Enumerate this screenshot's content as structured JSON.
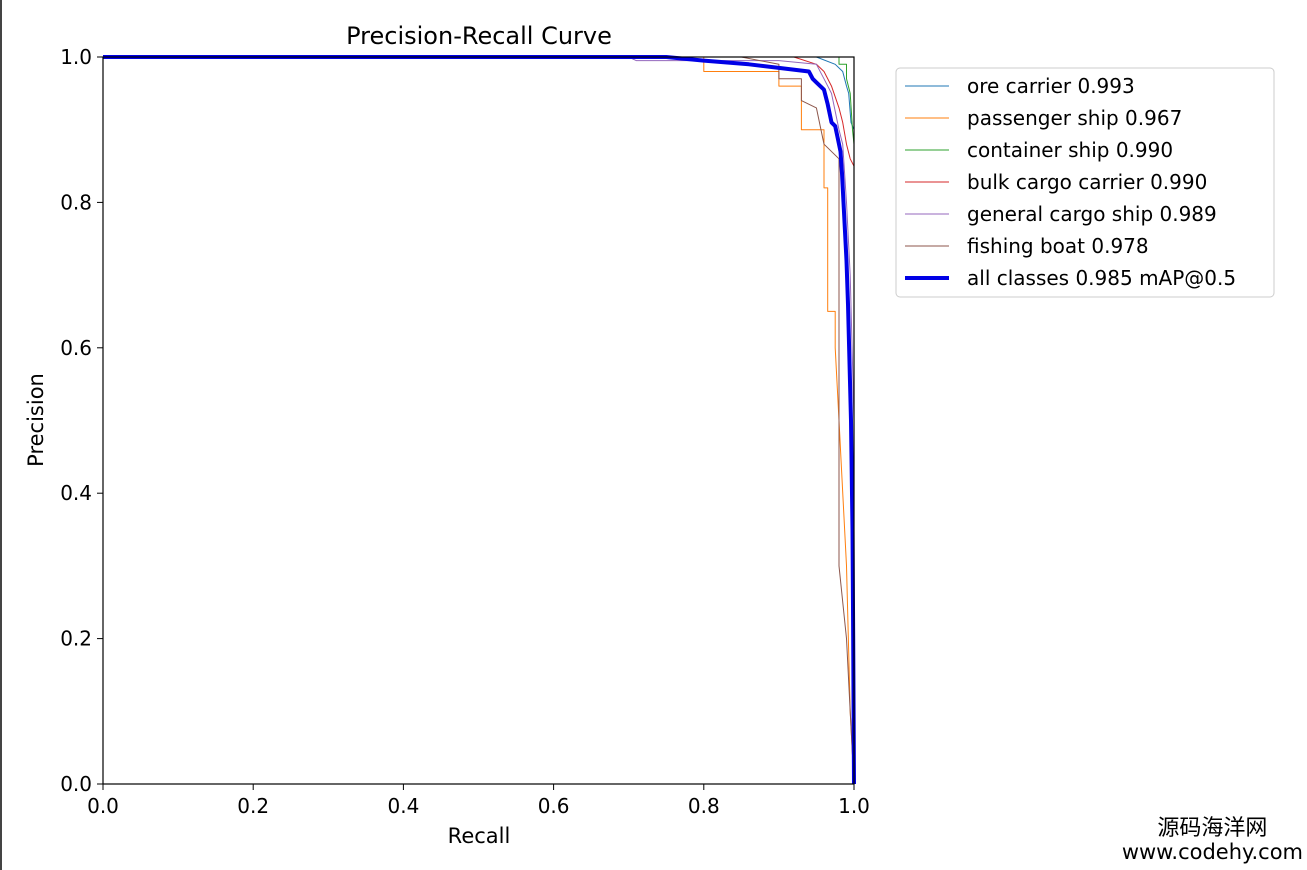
{
  "chart_data": {
    "type": "line",
    "title": "Precision-Recall Curve",
    "xlabel": "Recall",
    "ylabel": "Precision",
    "xlim": [
      0,
      1
    ],
    "ylim": [
      0,
      1
    ],
    "xticks": [
      "0.0",
      "0.2",
      "0.4",
      "0.6",
      "0.8",
      "1.0"
    ],
    "yticks": [
      "0.0",
      "0.2",
      "0.4",
      "0.6",
      "0.8",
      "1.0"
    ],
    "grid": false,
    "legend_position": "outside-top-right",
    "series": [
      {
        "name": "ore carrier 0.993",
        "color": "#1f77b4",
        "width": 1,
        "points": [
          [
            0,
            1
          ],
          [
            0.95,
            1
          ],
          [
            0.975,
            0.99
          ],
          [
            0.985,
            0.98
          ],
          [
            0.99,
            0.96
          ],
          [
            0.993,
            0.95
          ],
          [
            0.996,
            0.91
          ],
          [
            1.0,
            0.9
          ],
          [
            1.0,
            0
          ]
        ]
      },
      {
        "name": "passenger ship 0.967",
        "color": "#ff7f0e",
        "width": 1,
        "points": [
          [
            0,
            1
          ],
          [
            0.8,
            1
          ],
          [
            0.8,
            0.98
          ],
          [
            0.9,
            0.98
          ],
          [
            0.9,
            0.96
          ],
          [
            0.93,
            0.96
          ],
          [
            0.93,
            0.9
          ],
          [
            0.96,
            0.9
          ],
          [
            0.96,
            0.82
          ],
          [
            0.965,
            0.82
          ],
          [
            0.965,
            0.65
          ],
          [
            0.975,
            0.65
          ],
          [
            0.975,
            0.6
          ],
          [
            0.98,
            0.5
          ],
          [
            0.99,
            0.3
          ],
          [
            0.995,
            0.1
          ],
          [
            1.0,
            0
          ]
        ]
      },
      {
        "name": "container ship 0.990",
        "color": "#2ca02c",
        "width": 1,
        "points": [
          [
            0,
            1
          ],
          [
            0.97,
            1
          ],
          [
            0.98,
            1
          ],
          [
            0.98,
            0.99
          ],
          [
            0.99,
            0.99
          ],
          [
            0.99,
            0.97
          ],
          [
            0.995,
            0.95
          ],
          [
            0.998,
            0.9
          ],
          [
            1.0,
            0.88
          ],
          [
            1.0,
            0
          ]
        ]
      },
      {
        "name": "bulk cargo carrier 0.990",
        "color": "#d62728",
        "width": 1,
        "points": [
          [
            0,
            1
          ],
          [
            0.92,
            1
          ],
          [
            0.95,
            0.99
          ],
          [
            0.96,
            0.98
          ],
          [
            0.97,
            0.96
          ],
          [
            0.98,
            0.93
          ],
          [
            0.985,
            0.91
          ],
          [
            0.99,
            0.88
          ],
          [
            0.995,
            0.86
          ],
          [
            1.0,
            0.85
          ],
          [
            1.0,
            0
          ]
        ]
      },
      {
        "name": "general cargo ship 0.989",
        "color": "#9467bd",
        "width": 1,
        "points": [
          [
            0,
            1
          ],
          [
            0.7,
            1
          ],
          [
            0.71,
            0.995
          ],
          [
            0.9,
            0.995
          ],
          [
            0.95,
            0.99
          ],
          [
            0.96,
            0.97
          ],
          [
            0.97,
            0.95
          ],
          [
            0.98,
            0.9
          ],
          [
            0.985,
            0.88
          ],
          [
            0.99,
            0.8
          ],
          [
            0.995,
            0.7
          ],
          [
            1.0,
            0.5
          ],
          [
            1.0,
            0
          ]
        ]
      },
      {
        "name": "fishing boat 0.978",
        "color": "#8c564b",
        "width": 1,
        "points": [
          [
            0,
            1
          ],
          [
            0.85,
            1
          ],
          [
            0.9,
            0.99
          ],
          [
            0.9,
            0.97
          ],
          [
            0.93,
            0.97
          ],
          [
            0.93,
            0.94
          ],
          [
            0.95,
            0.93
          ],
          [
            0.96,
            0.88
          ],
          [
            0.98,
            0.86
          ],
          [
            0.98,
            0.3
          ],
          [
            0.99,
            0.2
          ],
          [
            0.995,
            0.1
          ],
          [
            1.0,
            0
          ]
        ]
      },
      {
        "name": "all classes 0.985 mAP@0.5",
        "color": "#0000e6",
        "width": 4,
        "points": [
          [
            0,
            1
          ],
          [
            0.75,
            1
          ],
          [
            0.8,
            0.995
          ],
          [
            0.86,
            0.99
          ],
          [
            0.9,
            0.985
          ],
          [
            0.94,
            0.98
          ],
          [
            0.945,
            0.97
          ],
          [
            0.95,
            0.965
          ],
          [
            0.955,
            0.96
          ],
          [
            0.96,
            0.955
          ],
          [
            0.965,
            0.935
          ],
          [
            0.97,
            0.91
          ],
          [
            0.975,
            0.905
          ],
          [
            0.978,
            0.89
          ],
          [
            0.982,
            0.87
          ],
          [
            0.984,
            0.84
          ],
          [
            0.986,
            0.8
          ],
          [
            0.988,
            0.76
          ],
          [
            0.99,
            0.72
          ],
          [
            0.992,
            0.66
          ],
          [
            0.994,
            0.58
          ],
          [
            0.996,
            0.5
          ],
          [
            0.998,
            0.35
          ],
          [
            0.999,
            0.2
          ],
          [
            1.0,
            0
          ]
        ]
      }
    ]
  },
  "watermark": {
    "line1": "源码海洋网",
    "line2": "www.codehy.com"
  }
}
